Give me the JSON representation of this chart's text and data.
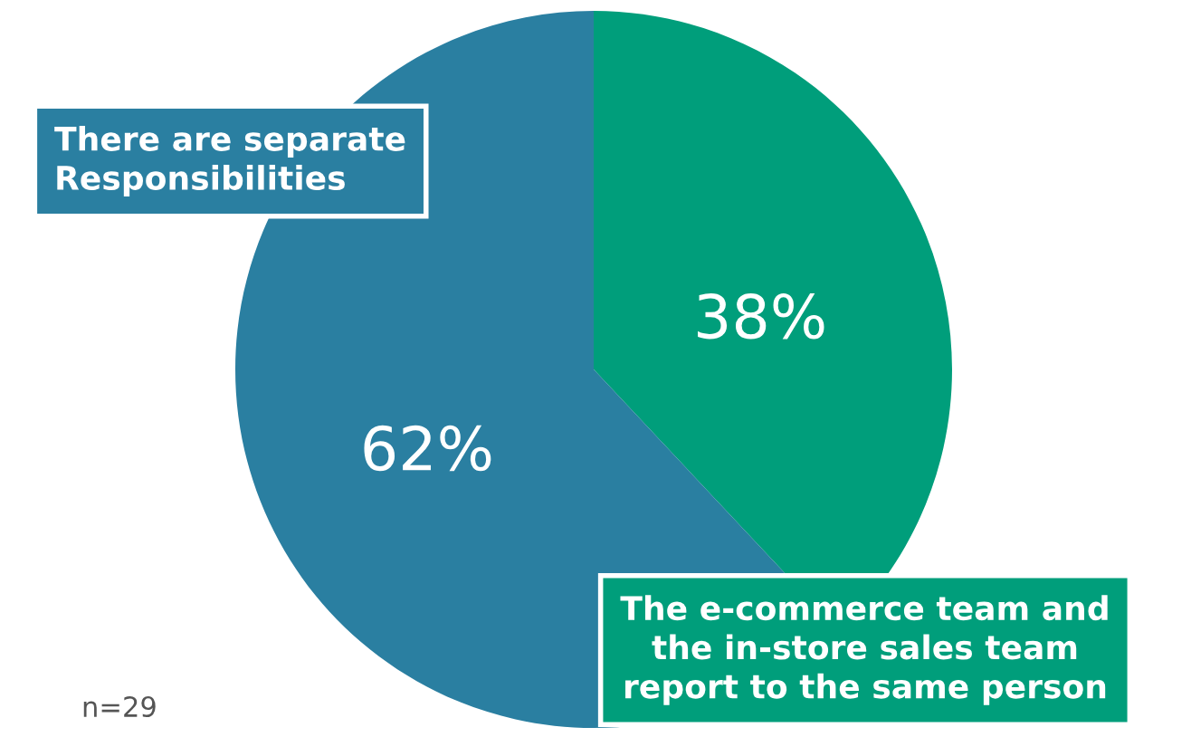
{
  "chart_data": {
    "type": "pie",
    "categories": [
      "The e-commerce team and\nthe in-store sales team\nreport to the same person",
      "There are separate\nResponsibilities"
    ],
    "values": [
      38,
      62
    ],
    "value_labels": [
      "38%",
      "62%"
    ],
    "colors": [
      "#009e7b",
      "#2a7fa1"
    ],
    "annotations": [
      "n=29"
    ]
  }
}
